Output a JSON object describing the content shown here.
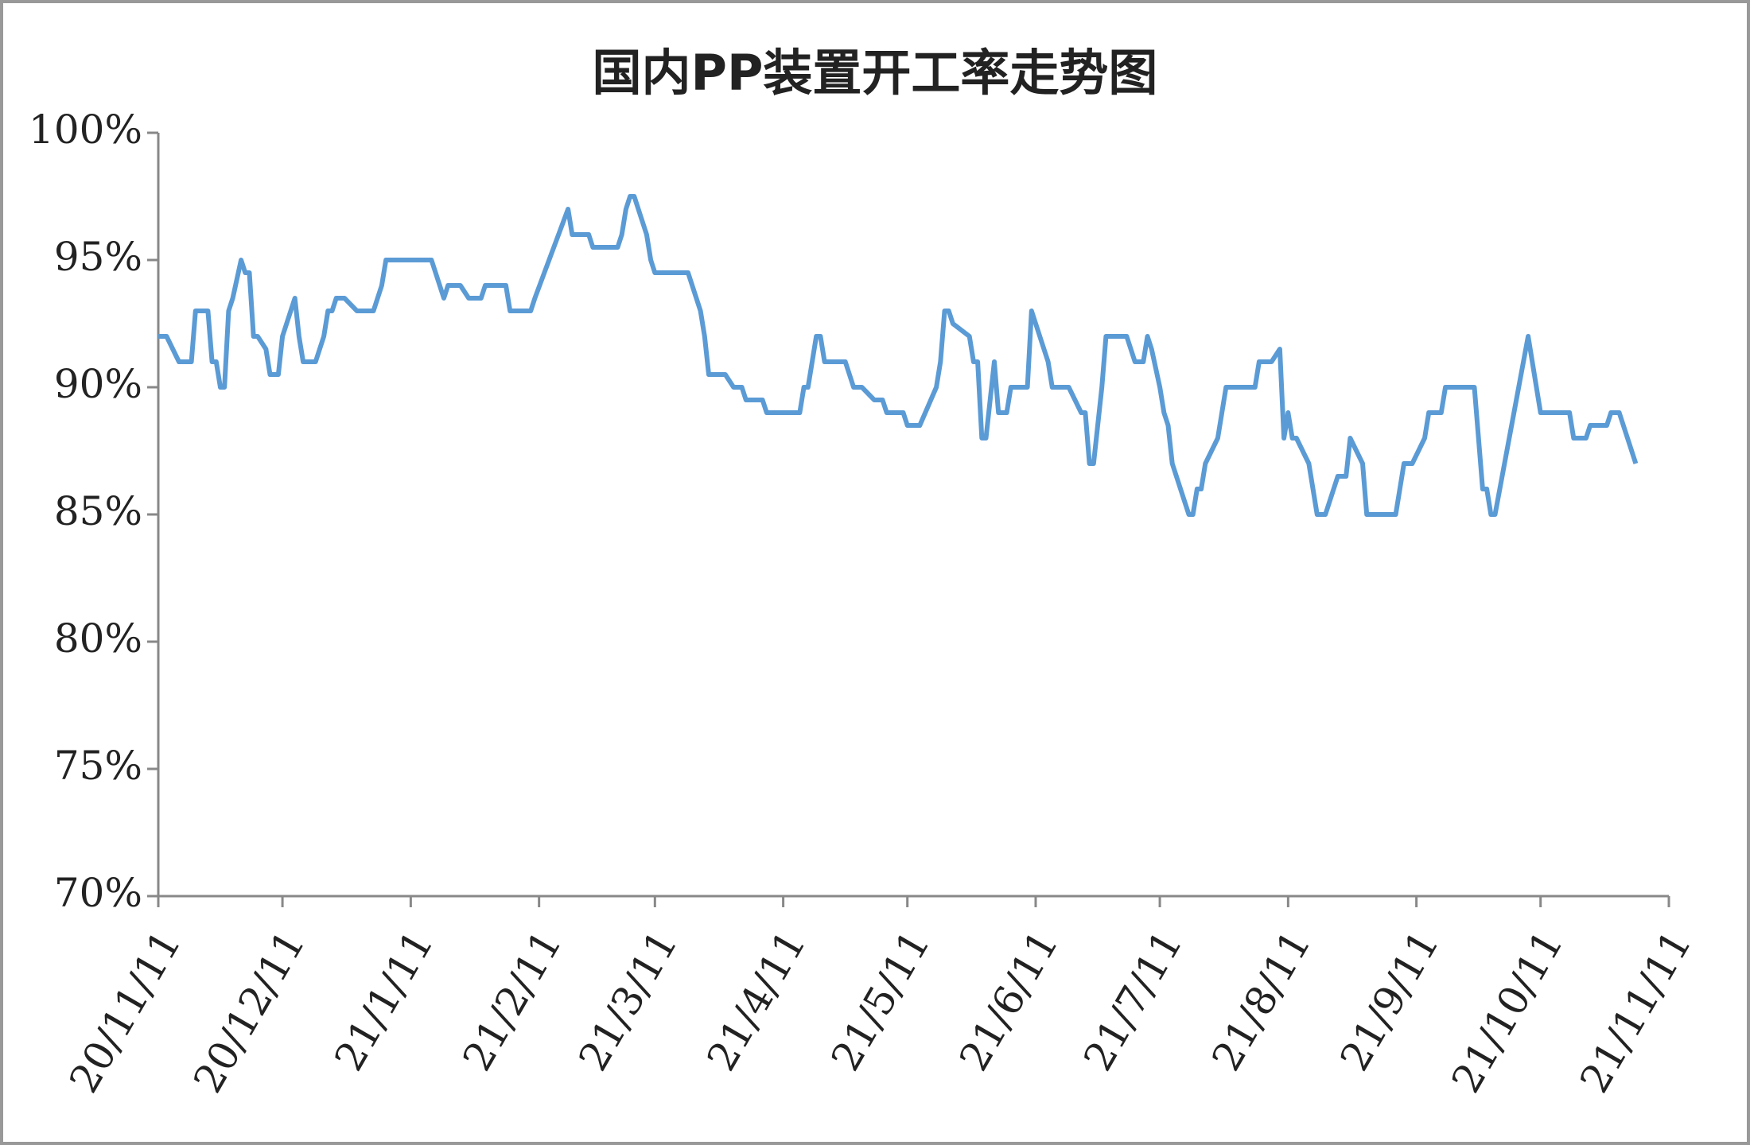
{
  "chart_data": {
    "type": "line",
    "title": "国内PP装置开工率走势图",
    "x": [
      "20/11/11",
      "20/11/13",
      "20/11/16",
      "20/11/19",
      "20/11/20",
      "20/11/23",
      "20/11/24",
      "20/11/25",
      "20/11/26",
      "20/11/27",
      "20/11/28",
      "20/11/29",
      "20/12/01",
      "20/12/02",
      "20/12/03",
      "20/12/04",
      "20/12/05",
      "20/12/07",
      "20/12/08",
      "20/12/10",
      "20/12/11",
      "20/12/12",
      "20/12/14",
      "20/12/15",
      "20/12/16",
      "20/12/19",
      "20/12/21",
      "20/12/22",
      "20/12/23",
      "20/12/24",
      "20/12/26",
      "20/12/29",
      "21/01/02",
      "21/01/04",
      "21/01/05",
      "21/01/08",
      "21/01/16",
      "21/01/18",
      "21/01/19",
      "21/01/20",
      "21/01/23",
      "21/01/25",
      "21/01/28",
      "21/01/29",
      "21/02/03",
      "21/02/04",
      "21/02/09",
      "21/02/10",
      "21/02/18",
      "21/02/19",
      "21/02/23",
      "21/02/24",
      "21/03/02",
      "21/03/03",
      "21/03/04",
      "21/03/05",
      "21/03/06",
      "21/03/09",
      "21/03/10",
      "21/03/11",
      "21/03/19",
      "21/03/22",
      "21/03/23",
      "21/03/24",
      "21/03/28",
      "21/03/30",
      "21/04/01",
      "21/04/02",
      "21/04/06",
      "21/04/07",
      "21/04/15",
      "21/04/16",
      "21/04/17",
      "21/04/19",
      "21/04/20",
      "21/04/21",
      "21/04/26",
      "21/04/27",
      "21/04/28",
      "21/04/30",
      "21/05/03",
      "21/05/05",
      "21/05/06",
      "21/05/10",
      "21/05/11",
      "21/05/14",
      "21/05/18",
      "21/05/19",
      "21/05/20",
      "21/05/21",
      "21/05/22",
      "21/05/26",
      "21/05/27",
      "21/05/28",
      "21/05/29",
      "21/05/30",
      "21/06/01",
      "21/06/02",
      "21/06/04",
      "21/06/05",
      "21/06/09",
      "21/06/10",
      "21/06/11",
      "21/06/14",
      "21/06/15",
      "21/06/19",
      "21/06/22",
      "21/06/23",
      "21/06/24",
      "21/06/25",
      "21/06/27",
      "21/06/28",
      "21/07/03",
      "21/07/05",
      "21/07/07",
      "21/07/08",
      "21/07/09",
      "21/07/11",
      "21/07/12",
      "21/07/13",
      "21/07/14",
      "21/07/18",
      "21/07/19",
      "21/07/20",
      "21/07/21",
      "21/07/22",
      "21/07/25",
      "21/07/26",
      "21/07/27",
      "21/08/03",
      "21/08/04",
      "21/08/07",
      "21/08/09",
      "21/08/10",
      "21/08/11",
      "21/08/12",
      "21/08/13",
      "21/08/16",
      "21/08/17",
      "21/08/18",
      "21/08/20",
      "21/08/23",
      "21/08/25",
      "21/08/26",
      "21/08/29",
      "21/08/30",
      "21/09/06",
      "21/09/07",
      "21/09/08",
      "21/09/10",
      "21/09/13",
      "21/09/14",
      "21/09/17",
      "21/09/18",
      "21/09/25",
      "21/09/27",
      "21/09/28",
      "21/09/29",
      "21/09/30",
      "21/10/08",
      "21/10/11",
      "21/10/18",
      "21/10/19",
      "21/10/22",
      "21/10/23",
      "21/10/27",
      "21/10/28",
      "21/10/30",
      "21/11/03"
    ],
    "series": [
      {
        "color": "#5b9bd5",
        "values": [
          92,
          92,
          91,
          91,
          93,
          93,
          91,
          91,
          90,
          90,
          93,
          93.5,
          95,
          94.5,
          94.5,
          92,
          92,
          91.5,
          90.5,
          90.5,
          92,
          92.5,
          93.5,
          92,
          91,
          91,
          92,
          93,
          93,
          93.5,
          93.5,
          93,
          93,
          94,
          95,
          95,
          95,
          94,
          93.5,
          94,
          94,
          93.5,
          93.5,
          94,
          94,
          93,
          93,
          93.5,
          97,
          96,
          96,
          95.5,
          95.5,
          96,
          97,
          97.5,
          97.5,
          96,
          95,
          94.5,
          94.5,
          93,
          92,
          90.5,
          90.5,
          90,
          90,
          89.5,
          89.5,
          89,
          89,
          90,
          90,
          92,
          92,
          91,
          91,
          90.5,
          90,
          90,
          89.5,
          89.5,
          89,
          89,
          88.5,
          88.5,
          90,
          91,
          93,
          93,
          92.5,
          92,
          91,
          91,
          88,
          88,
          91,
          89,
          89,
          90,
          90,
          93,
          92.5,
          91,
          90,
          90,
          89,
          89,
          87,
          87,
          90,
          92,
          92,
          91,
          91,
          92,
          91.5,
          90,
          89,
          88.5,
          87,
          85,
          85,
          86,
          86,
          87,
          88,
          89,
          90,
          90,
          91,
          91,
          91.5,
          88,
          89,
          88,
          88,
          87,
          86,
          85,
          85,
          86.5,
          86.5,
          88,
          87,
          85,
          85,
          86,
          87,
          87,
          88,
          89,
          89,
          90,
          90,
          86,
          86,
          85,
          85,
          92,
          89,
          89,
          88,
          88,
          88.5,
          88.5,
          89,
          89,
          87
        ]
      }
    ],
    "xlim": [
      "20/11/11",
      "21/11/11"
    ],
    "xticks": [
      "20/11/11",
      "20/12/11",
      "21/1/11",
      "21/2/11",
      "21/3/11",
      "21/4/11",
      "21/5/11",
      "21/6/11",
      "21/7/11",
      "21/8/11",
      "21/9/11",
      "21/10/11",
      "21/11/11"
    ],
    "ylim": [
      70,
      100
    ],
    "yticks": [
      {
        "value": 70,
        "label": "70%"
      },
      {
        "value": 75,
        "label": "75%"
      },
      {
        "value": 80,
        "label": "80%"
      },
      {
        "value": 85,
        "label": "85%"
      },
      {
        "value": 90,
        "label": "90%"
      },
      {
        "value": 95,
        "label": "95%"
      },
      {
        "value": 100,
        "label": "100%"
      }
    ],
    "grid": false
  }
}
